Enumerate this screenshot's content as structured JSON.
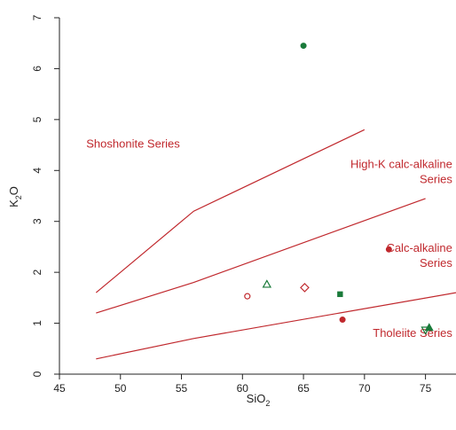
{
  "chart_data": {
    "type": "scatter",
    "title": "",
    "xlabel": "SiO",
    "xlabel_sub": "2",
    "ylabel": "K",
    "ylabel_sub": "2",
    "ylabel_suffix": "O",
    "xlim": [
      45,
      77.5
    ],
    "ylim": [
      0,
      7
    ],
    "xticks": [
      45,
      50,
      55,
      60,
      65,
      70,
      75
    ],
    "yticks": [
      0,
      1,
      2,
      3,
      4,
      5,
      6,
      7
    ],
    "grid": false,
    "colors": {
      "boundary": "#c0282d",
      "red": "#c0282d",
      "green": "#1a7a3a",
      "axis": "#222222"
    },
    "boundaries": [
      {
        "points": [
          [
            48,
            0.3
          ],
          [
            56,
            0.7
          ],
          [
            77.5,
            1.6
          ]
        ]
      },
      {
        "points": [
          [
            48,
            1.2
          ],
          [
            56,
            1.8
          ],
          [
            75,
            3.45
          ]
        ]
      },
      {
        "points": [
          [
            48,
            1.6
          ],
          [
            56,
            3.2
          ],
          [
            70,
            4.8
          ]
        ]
      }
    ],
    "field_labels": [
      {
        "lines": [
          "Shoshonite Series"
        ],
        "x": 47.2,
        "y": 4.45,
        "anchor": "start"
      },
      {
        "lines": [
          "High-K calc-alkaline",
          "Series"
        ],
        "x": 77.2,
        "y": 4.05,
        "anchor": "end"
      },
      {
        "lines": [
          "Calc-alkaline",
          "Series"
        ],
        "x": 77.2,
        "y": 2.4,
        "anchor": "end"
      },
      {
        "lines": [
          "Tholeiite Series"
        ],
        "x": 77.2,
        "y": 0.73,
        "anchor": "end"
      }
    ],
    "points": [
      {
        "x": 65.0,
        "y": 6.45,
        "marker": "filled-circle",
        "color": "green"
      },
      {
        "x": 60.4,
        "y": 1.53,
        "marker": "open-circle",
        "color": "red"
      },
      {
        "x": 62.0,
        "y": 1.76,
        "marker": "open-triangle",
        "color": "green"
      },
      {
        "x": 65.1,
        "y": 1.7,
        "marker": "open-diamond",
        "color": "red"
      },
      {
        "x": 68.0,
        "y": 1.57,
        "marker": "filled-square",
        "color": "green"
      },
      {
        "x": 68.2,
        "y": 1.07,
        "marker": "filled-circle",
        "color": "red"
      },
      {
        "x": 72.0,
        "y": 2.45,
        "marker": "filled-circle",
        "color": "red"
      },
      {
        "x": 75.3,
        "y": 0.91,
        "marker": "filled-triangle",
        "color": "green"
      },
      {
        "x": 75.0,
        "y": 0.87,
        "marker": "open-triangle-down",
        "color": "green"
      }
    ]
  }
}
